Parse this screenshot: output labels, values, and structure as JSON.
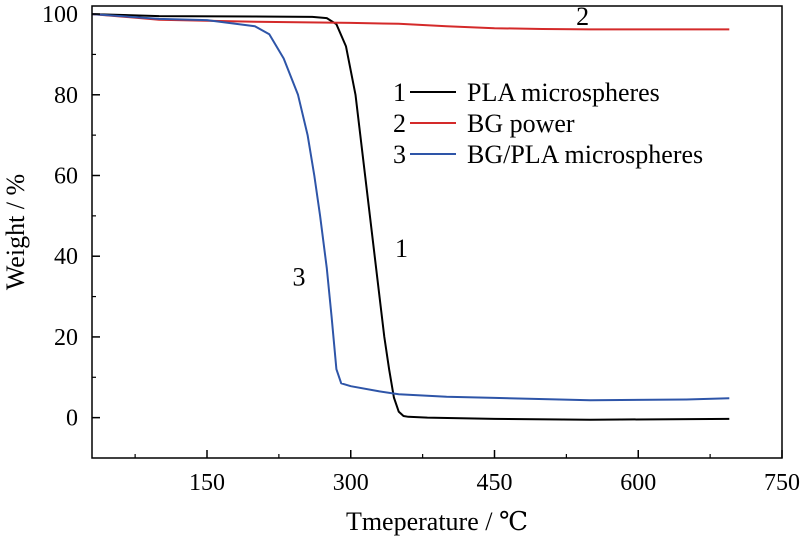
{
  "chart_data": {
    "type": "line",
    "xlabel": "Tmeperature / ℃",
    "ylabel": "Weight / %",
    "xlim": [
      30,
      750
    ],
    "ylim": [
      -10,
      102
    ],
    "xticks": [
      150,
      300,
      450,
      600,
      750
    ],
    "yticks": [
      0,
      20,
      40,
      60,
      80,
      100
    ],
    "grid": false,
    "legend_position": "right",
    "series": [
      {
        "name": "PLA microspheres",
        "id": "1",
        "color": "#000000",
        "x": [
          30,
          100,
          200,
          260,
          275,
          285,
          295,
          305,
          315,
          325,
          335,
          340,
          345,
          350,
          355,
          360,
          380,
          450,
          550,
          695
        ],
        "y": [
          100.0,
          99.5,
          99.4,
          99.3,
          99.0,
          97.5,
          92.0,
          80.0,
          60.0,
          40.0,
          20.0,
          12.0,
          5.0,
          1.5,
          0.4,
          0.2,
          0.0,
          -0.3,
          -0.5,
          -0.3
        ]
      },
      {
        "name": "BG power",
        "id": "2",
        "color": "#d42a2a",
        "x": [
          30,
          100,
          200,
          300,
          350,
          400,
          450,
          500,
          550,
          600,
          695
        ],
        "y": [
          100.0,
          98.6,
          98.1,
          97.8,
          97.6,
          97.0,
          96.5,
          96.3,
          96.2,
          96.2,
          96.2
        ]
      },
      {
        "name": "BG/PLA microspheres",
        "id": "3",
        "color": "#2e55a8",
        "x": [
          30,
          100,
          150,
          200,
          215,
          230,
          245,
          255,
          262,
          268,
          275,
          280,
          285,
          290,
          300,
          330,
          350,
          400,
          450,
          550,
          650,
          695
        ],
        "y": [
          100.0,
          98.8,
          98.5,
          97.0,
          95.0,
          89.0,
          80.0,
          70.0,
          60.0,
          50.0,
          37.0,
          25.0,
          12.0,
          8.5,
          7.8,
          6.5,
          5.8,
          5.2,
          4.9,
          4.3,
          4.5,
          4.8
        ]
      }
    ],
    "annotations": [
      {
        "text": "1",
        "x": 353,
        "y": 42
      },
      {
        "text": "2",
        "x": 542,
        "y": 99.5
      },
      {
        "text": "3",
        "x": 246,
        "y": 35
      }
    ]
  }
}
